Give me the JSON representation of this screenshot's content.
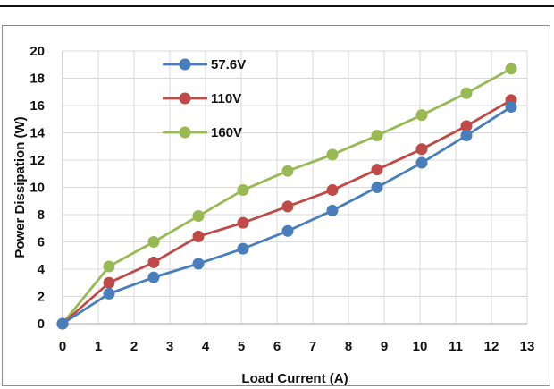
{
  "chart_data": {
    "type": "line",
    "xlabel": "Load Current (A)",
    "ylabel": "Power Dissipation (W)",
    "xlim": [
      0,
      13
    ],
    "ylim": [
      0,
      20
    ],
    "x_ticks": [
      0,
      1,
      2,
      3,
      4,
      5,
      6,
      7,
      8,
      9,
      10,
      11,
      12,
      13
    ],
    "y_ticks": [
      0,
      2,
      4,
      6,
      8,
      10,
      12,
      14,
      16,
      18,
      20
    ],
    "grid": true,
    "legend_position": "top-left",
    "x": [
      0,
      1.3,
      2.55,
      3.8,
      5.05,
      6.3,
      7.55,
      8.8,
      10.05,
      11.3,
      12.55
    ],
    "series": [
      {
        "name": "57.6V",
        "color": "#4a7ebb",
        "values": [
          0,
          2.2,
          3.4,
          4.4,
          5.5,
          6.8,
          8.3,
          10.0,
          11.8,
          13.8,
          15.9
        ]
      },
      {
        "name": "110V",
        "color": "#be4b48",
        "values": [
          0,
          3.0,
          4.5,
          6.4,
          7.4,
          8.6,
          9.8,
          11.3,
          12.8,
          14.5,
          16.4
        ]
      },
      {
        "name": "160V",
        "color": "#98b954",
        "values": [
          0,
          4.2,
          6.0,
          7.9,
          9.8,
          11.2,
          12.4,
          13.8,
          15.3,
          16.9,
          18.7
        ]
      }
    ]
  }
}
